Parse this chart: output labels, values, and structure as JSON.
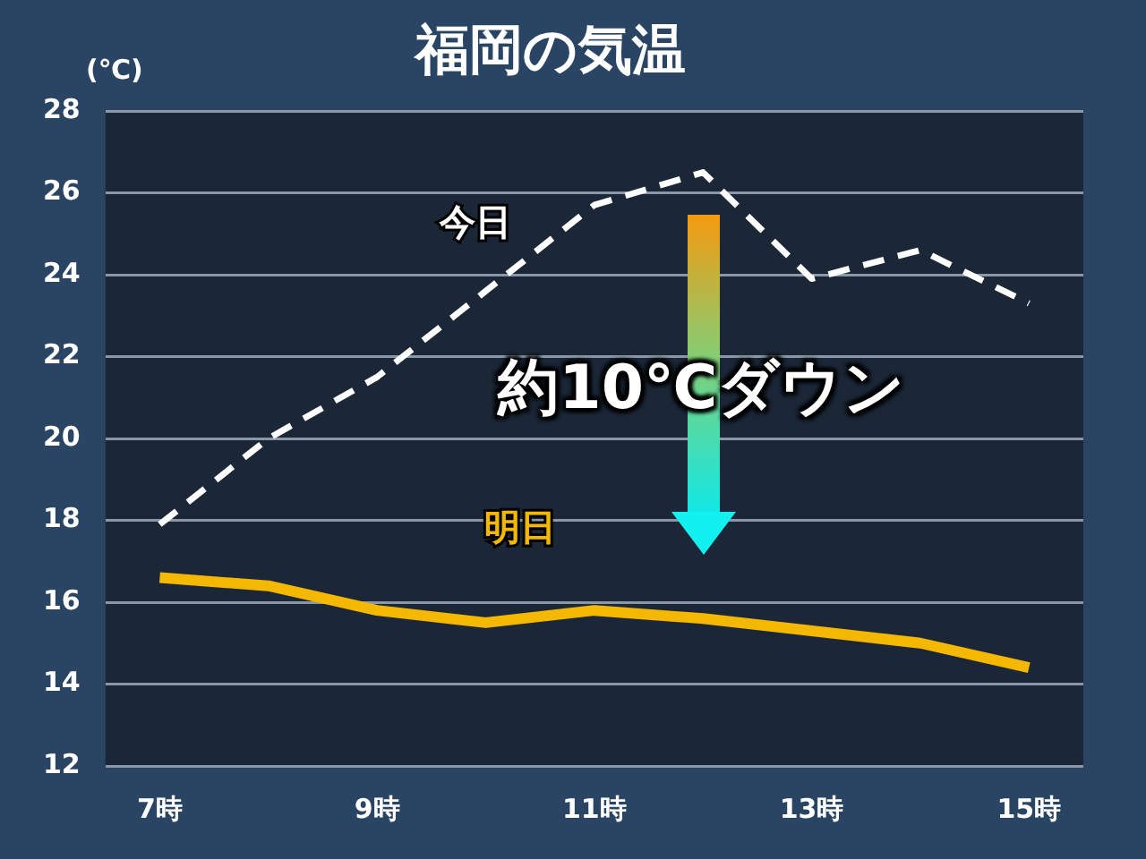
{
  "chart_data": {
    "type": "line",
    "title": "福岡の気温",
    "ylabel": "(℃)",
    "categories": [
      "7時",
      null,
      "9時",
      null,
      "11時",
      null,
      "13時",
      null,
      "15時"
    ],
    "series": [
      {
        "name": "今日",
        "color": "#ffffff",
        "line_style": "dashed",
        "values": [
          17.9,
          20.0,
          21.5,
          23.6,
          25.7,
          26.5,
          23.9,
          24.6,
          23.3
        ]
      },
      {
        "name": "明日",
        "color": "#f5b800",
        "line_style": "solid",
        "values": [
          16.6,
          16.4,
          15.8,
          15.5,
          15.8,
          15.6,
          15.3,
          15.0,
          14.4
        ]
      }
    ],
    "ylim": [
      12,
      28
    ],
    "yticks": [
      12,
      14,
      16,
      18,
      20,
      22,
      24,
      26,
      28
    ],
    "grid": "y",
    "legend": false,
    "marker": "none",
    "annotations": [
      "約10℃ダウン"
    ]
  }
}
